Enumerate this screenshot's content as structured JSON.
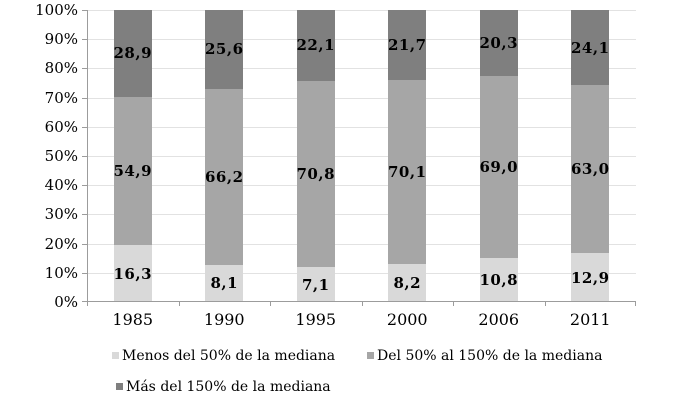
{
  "chart_data": {
    "type": "bar",
    "variant": "stacked-100-percent",
    "title": "",
    "xlabel": "",
    "ylabel": "",
    "grid": true,
    "data_labels": true,
    "legend_position": "bottom",
    "categories": [
      "1985",
      "1990",
      "1995",
      "2000",
      "2006",
      "2011"
    ],
    "series": [
      {
        "name": "Menos del 50% de la mediana",
        "color": "#d9d9d9",
        "values": [
          16.3,
          8.1,
          7.1,
          8.2,
          10.8,
          12.9
        ],
        "labels": [
          "16,3",
          "8,1",
          "7,1",
          "8,2",
          "10,8",
          "12,9"
        ]
      },
      {
        "name": "Del 50% al 150% de la mediana",
        "color": "#a6a6a6",
        "values": [
          54.9,
          66.2,
          70.8,
          70.1,
          69.0,
          63.0
        ],
        "labels": [
          "54,9",
          "66,2",
          "70,8",
          "70,1",
          "69,0",
          "63,0"
        ]
      },
      {
        "name": "Más del 150% de la mediana",
        "color": "#7f7f7f",
        "values": [
          28.9,
          25.6,
          22.1,
          21.7,
          20.3,
          24.1
        ],
        "labels": [
          "28,9",
          "25,6",
          "22,1",
          "21,7",
          "20,3",
          "24,1"
        ]
      }
    ],
    "y_axis": {
      "min": 0,
      "max": 100,
      "step": 10,
      "tick_labels": [
        "0%",
        "10%",
        "20%",
        "30%",
        "40%",
        "50%",
        "60%",
        "70%",
        "80%",
        "90%",
        "100%"
      ]
    }
  },
  "colors": {
    "grid": "#e2e2e2",
    "axis": "#9c9c9c",
    "label_text": "#000000",
    "background": "#ffffff"
  }
}
